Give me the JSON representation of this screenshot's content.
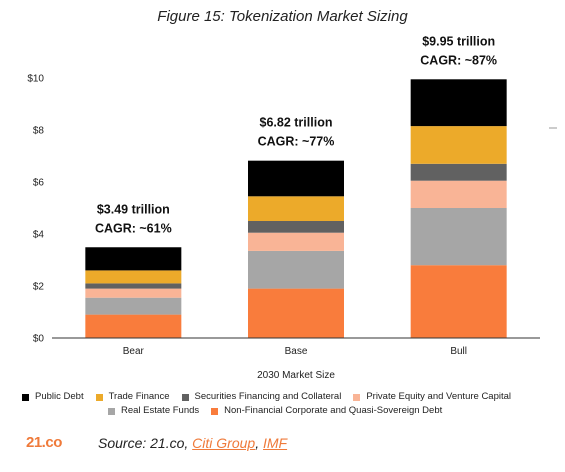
{
  "figure_title": "Figure 15: Tokenization Market Sizing",
  "chart_data": {
    "type": "bar",
    "stacked": true,
    "categories": [
      "Bear",
      "Base",
      "Bull"
    ],
    "xlabel": "2030 Market Size",
    "ylabel": "",
    "ylim": [
      0,
      10
    ],
    "yticks": [
      "$0",
      "$2",
      "$4",
      "$6",
      "$8",
      "$10"
    ],
    "grid": false,
    "legend_position": "bottom",
    "series": [
      {
        "name": "Non-Financial Corporate and Quasi-Sovereign Debt",
        "color": "#f97c3c",
        "values": [
          0.9,
          1.9,
          2.8
        ]
      },
      {
        "name": "Real Estate Funds",
        "color": "#a6a6a6",
        "values": [
          0.65,
          1.45,
          2.2
        ]
      },
      {
        "name": "Private Equity and Venture Capital",
        "color": "#f9b496",
        "values": [
          0.35,
          0.7,
          1.05
        ]
      },
      {
        "name": "Securities Financing and Collateral",
        "color": "#616161",
        "values": [
          0.2,
          0.45,
          0.65
        ]
      },
      {
        "name": "Trade Finance",
        "color": "#ecaa2a",
        "values": [
          0.5,
          0.95,
          1.45
        ]
      },
      {
        "name": "Public Debt",
        "color": "#000000",
        "values": [
          0.89,
          1.37,
          1.8
        ]
      }
    ],
    "annotations": [
      {
        "category": "Bear",
        "total": "$3.49 trillion",
        "cagr": "CAGR: ~61%"
      },
      {
        "category": "Base",
        "total": "$6.82 trillion",
        "cagr": "CAGR: ~77%"
      },
      {
        "category": "Bull",
        "total": "$9.95  trillion",
        "cagr": "CAGR: ~87%"
      }
    ]
  },
  "legend": {
    "row1": [
      {
        "label": "Public Debt",
        "color": "#000000"
      },
      {
        "label": "Trade Finance",
        "color": "#ecaa2a"
      },
      {
        "label": "Securities Financing and Collateral",
        "color": "#616161"
      },
      {
        "label": "Private Equity and Venture Capital",
        "color": "#f9b496"
      }
    ],
    "row2": [
      {
        "label": "Real Estate Funds",
        "color": "#a6a6a6"
      },
      {
        "label": "Non-Financial Corporate and Quasi-Sovereign Debt",
        "color": "#f97c3c"
      }
    ]
  },
  "footer": {
    "brand": "21.co",
    "source_prefix": "Source: 21.co, ",
    "source_link1": "Citi Group",
    "source_sep": ", ",
    "source_link2": "IMF"
  }
}
